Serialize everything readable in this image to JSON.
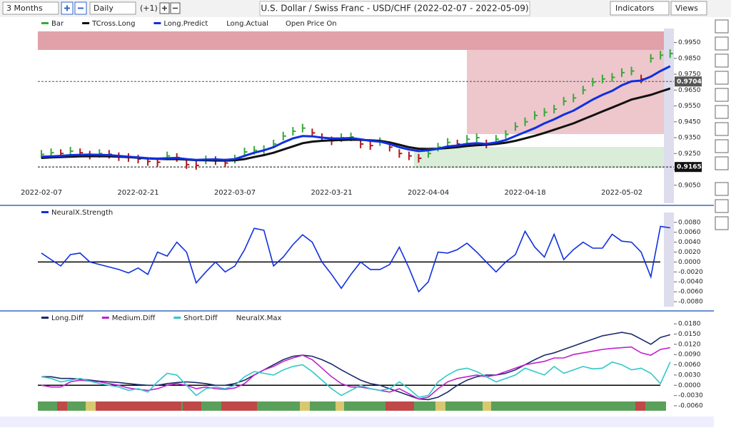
{
  "toolbar": {
    "period": "3 Months",
    "interval": "Daily",
    "offset": "(+1)",
    "title": "U.S. Dollar / Swiss Franc - USD/CHF (2022-02-07 - 2022-05-09)",
    "indicators": "Indicators",
    "views": "Views"
  },
  "chart_data": [
    {
      "type": "line",
      "categories": [
        "2022-02-07",
        null,
        null,
        null,
        null,
        null,
        null,
        null,
        null,
        null,
        "2022-02-21",
        null,
        null,
        null,
        null,
        null,
        null,
        null,
        null,
        null,
        "2022-03-07",
        null,
        null,
        null,
        null,
        null,
        null,
        null,
        null,
        null,
        "2022-03-21",
        null,
        null,
        null,
        null,
        null,
        null,
        null,
        null,
        null,
        "2022-04-04",
        null,
        null,
        null,
        null,
        null,
        null,
        null,
        null,
        null,
        "2022-04-18",
        null,
        null,
        null,
        null,
        null,
        null,
        null,
        null,
        null,
        "2022-05-02",
        null,
        null,
        null,
        null,
        null
      ],
      "series": [
        {
          "name": "Bar",
          "color": "#3aa63a",
          "down_color": "#b01818",
          "style": "bar",
          "values": [
            0.9245,
            0.9255,
            0.925,
            0.9265,
            0.9255,
            0.924,
            0.925,
            0.9245,
            0.923,
            0.9225,
            0.9215,
            0.92,
            0.9195,
            0.9235,
            0.9225,
            0.918,
            0.9175,
            0.921,
            0.9205,
            0.919,
            0.9215,
            0.926,
            0.927,
            0.9275,
            0.931,
            0.936,
            0.939,
            0.941,
            0.938,
            0.935,
            0.933,
            0.935,
            0.9355,
            0.931,
            0.93,
            0.9325,
            0.929,
            0.925,
            0.9235,
            0.922,
            0.925,
            0.929,
            0.932,
            0.931,
            0.934,
            0.935,
            0.931,
            0.934,
            0.937,
            0.942,
            0.945,
            0.949,
            0.951,
            0.953,
            0.958,
            0.96,
            0.965,
            0.97,
            0.972,
            0.973,
            0.976,
            0.977,
            0.972,
            0.985,
            0.987,
            0.988
          ]
        },
        {
          "name": "TCross.Long",
          "color": "#111111",
          "style": "line",
          "values": [
            0.9222,
            0.9225,
            0.9228,
            0.923,
            0.9232,
            0.9233,
            0.9233,
            0.9232,
            0.923,
            0.9227,
            0.9223,
            0.9219,
            0.9216,
            0.9215,
            0.9215,
            0.9212,
            0.9208,
            0.9207,
            0.9206,
            0.9205,
            0.9207,
            0.9215,
            0.9228,
            0.924,
            0.9255,
            0.9275,
            0.9295,
            0.9315,
            0.9325,
            0.933,
            0.9333,
            0.9335,
            0.9337,
            0.9336,
            0.9333,
            0.933,
            0.932,
            0.9305,
            0.929,
            0.928,
            0.9278,
            0.928,
            0.9285,
            0.929,
            0.9297,
            0.9302,
            0.9305,
            0.931,
            0.9318,
            0.933,
            0.9345,
            0.9362,
            0.938,
            0.94,
            0.942,
            0.944,
            0.9465,
            0.949,
            0.9515,
            0.954,
            0.9565,
            0.959,
            0.9605,
            0.962,
            0.964,
            0.966
          ]
        },
        {
          "name": "Long.Predict",
          "color": "#1030e0",
          "style": "line",
          "values": [
            0.923,
            0.9232,
            0.9235,
            0.924,
            0.9242,
            0.9243,
            0.9242,
            0.924,
            0.9235,
            0.923,
            0.9225,
            0.922,
            0.9218,
            0.922,
            0.9222,
            0.9215,
            0.921,
            0.9212,
            0.9213,
            0.921,
            0.9215,
            0.9235,
            0.9255,
            0.927,
            0.929,
            0.932,
            0.9345,
            0.936,
            0.9358,
            0.935,
            0.9345,
            0.9345,
            0.9348,
            0.934,
            0.933,
            0.9325,
            0.931,
            0.929,
            0.9275,
            0.9265,
            0.927,
            0.928,
            0.9295,
            0.93,
            0.931,
            0.9315,
            0.931,
            0.932,
            0.9335,
            0.936,
            0.9385,
            0.941,
            0.944,
            0.9465,
            0.9495,
            0.952,
            0.9555,
            0.959,
            0.962,
            0.9645,
            0.968,
            0.9705,
            0.971,
            0.9735,
            0.977,
            0.98
          ]
        }
      ],
      "other_legend_entries": [
        "Long.Actual",
        "Open Price On"
      ],
      "price_labels": [
        {
          "value": 0.9704,
          "label": "0.9704",
          "color": "#555555"
        },
        {
          "value": 0.9165,
          "label": "0.9165",
          "color": "#111111"
        }
      ],
      "ylim": [
        0.895,
        1.002
      ],
      "yticks": [
        {
          "value": 0.995,
          "label": "0.9950"
        },
        {
          "value": 0.985,
          "label": "0.9850"
        },
        {
          "value": 0.975,
          "label": "0.9750"
        },
        {
          "value": 0.965,
          "label": "0.9650"
        },
        {
          "value": 0.955,
          "label": "0.9550"
        },
        {
          "value": 0.945,
          "label": "0.9450"
        },
        {
          "value": 0.935,
          "label": "0.9350"
        },
        {
          "value": 0.925,
          "label": "0.9250"
        },
        {
          "value": 0.915,
          "label": "0.9150"
        },
        {
          "value": 0.905,
          "label": "0.9050"
        }
      ]
    },
    {
      "type": "line",
      "series": [
        {
          "name": "NeuralX.Strength",
          "color": "#1030e0",
          "style": "line",
          "values": [
            0.0018,
            0.0005,
            -0.0008,
            0.0015,
            0.0018,
            0.0,
            -0.0005,
            -0.001,
            -0.0015,
            -0.0022,
            -0.0012,
            -0.0025,
            0.002,
            0.0012,
            0.004,
            0.002,
            -0.0042,
            -0.002,
            0.0,
            -0.002,
            -0.0008,
            0.0025,
            0.0068,
            0.0064,
            -0.0008,
            0.001,
            0.0035,
            0.0055,
            0.004,
            0.0,
            -0.0025,
            -0.0053,
            -0.0025,
            0.0,
            -0.0015,
            -0.0015,
            -0.0005,
            0.003,
            -0.0012,
            -0.006,
            -0.004,
            0.002,
            0.0018,
            0.0025,
            0.0038,
            0.002,
            0.0,
            -0.002,
            0.0,
            0.0015,
            0.0062,
            0.003,
            0.001,
            0.0056,
            0.0005,
            0.0025,
            0.004,
            0.0028,
            0.0028,
            0.0056,
            0.0042,
            0.004,
            0.002,
            -0.003,
            0.0072,
            0.0069
          ]
        }
      ],
      "ylim": [
        -0.009,
        0.0097
      ],
      "yticks": [
        {
          "value": 0.008,
          "label": "0.0080"
        },
        {
          "value": 0.006,
          "label": "0.0060"
        },
        {
          "value": 0.004,
          "label": "0.0040"
        },
        {
          "value": 0.002,
          "label": "0.0020"
        },
        {
          "value": 0,
          "label": "0.0000"
        },
        {
          "value": -0.002,
          "label": "-0.0020"
        },
        {
          "value": -0.004,
          "label": "-0.0040"
        },
        {
          "value": -0.006,
          "label": "-0.0060"
        },
        {
          "value": -0.008,
          "label": "-0.0080"
        }
      ]
    },
    {
      "type": "line",
      "series": [
        {
          "name": "Long.Diff",
          "color": "#1a2a6a",
          "style": "line",
          "values": [
            0.0025,
            0.0025,
            0.002,
            0.002,
            0.0018,
            0.0015,
            0.0012,
            0.001,
            0.0008,
            0.0005,
            0.0002,
            0.0,
            0.0,
            0.0005,
            0.0008,
            0.001,
            0.0008,
            0.0005,
            0.0,
            0.0,
            0.0005,
            0.0015,
            0.003,
            0.0045,
            0.006,
            0.0075,
            0.0085,
            0.0088,
            0.0085,
            0.0075,
            0.0062,
            0.0045,
            0.003,
            0.0015,
            0.0005,
            0.0,
            -0.001,
            -0.002,
            -0.003,
            -0.004,
            -0.0042,
            -0.0035,
            -0.002,
            0.0,
            0.0015,
            0.0025,
            0.003,
            0.003,
            0.0035,
            0.0045,
            0.006,
            0.0075,
            0.0088,
            0.0095,
            0.0105,
            0.0115,
            0.0125,
            0.0135,
            0.0145,
            0.015,
            0.0155,
            0.015,
            0.0135,
            0.012,
            0.014,
            0.0148
          ]
        },
        {
          "name": "Medium.Diff",
          "color": "#c020d0",
          "style": "line",
          "values": [
            0.0,
            -0.0005,
            -0.0005,
            0.001,
            0.0015,
            0.0012,
            0.001,
            0.0005,
            0.0,
            -0.0008,
            -0.0012,
            -0.0015,
            -0.001,
            0.0,
            0.0005,
            0.0,
            -0.001,
            -0.0005,
            -0.001,
            -0.0012,
            -0.0008,
            0.0005,
            0.003,
            0.0045,
            0.0055,
            0.007,
            0.008,
            0.0088,
            0.0075,
            0.005,
            0.0025,
            0.0005,
            -0.0005,
            -0.0005,
            -0.001,
            -0.0015,
            -0.002,
            -0.001,
            -0.0025,
            -0.004,
            -0.0035,
            -0.001,
            0.001,
            0.002,
            0.0025,
            0.003,
            0.0025,
            0.003,
            0.004,
            0.005,
            0.006,
            0.0065,
            0.007,
            0.008,
            0.008,
            0.009,
            0.0095,
            0.01,
            0.0105,
            0.0108,
            0.011,
            0.0112,
            0.0095,
            0.0088,
            0.0105,
            0.011
          ]
        },
        {
          "name": "Short.Diff",
          "color": "#30c8c8",
          "style": "line",
          "values": [
            0.0025,
            0.002,
            0.001,
            0.0015,
            0.002,
            0.0012,
            0.0005,
            0.0,
            -0.0005,
            -0.0015,
            -0.001,
            -0.002,
            0.001,
            0.0035,
            0.003,
            0.0,
            -0.003,
            -0.001,
            -0.0005,
            -0.001,
            0.0,
            0.0025,
            0.004,
            0.0035,
            0.003,
            0.0045,
            0.0055,
            0.006,
            0.004,
            0.0015,
            -0.001,
            -0.003,
            -0.0015,
            0.0,
            -0.001,
            -0.0015,
            -0.001,
            0.001,
            -0.001,
            -0.0035,
            -0.003,
            0.001,
            0.003,
            0.0045,
            0.005,
            0.004,
            0.0025,
            0.001,
            0.002,
            0.003,
            0.005,
            0.004,
            0.003,
            0.0055,
            0.0035,
            0.0045,
            0.0055,
            0.0048,
            0.005,
            0.0068,
            0.006,
            0.0045,
            0.005,
            0.0035,
            0.0005,
            0.0068
          ]
        }
      ],
      "other_legend_entries": [
        "NeuralX.Max"
      ],
      "ylim": [
        -0.0083,
        0.0199
      ],
      "yticks": [
        {
          "value": 0.018,
          "label": "0.0180"
        },
        {
          "value": 0.015,
          "label": "0.0150"
        },
        {
          "value": 0.012,
          "label": "0.0120"
        },
        {
          "value": 0.009,
          "label": "0.0090"
        },
        {
          "value": 0.006,
          "label": "0.0060"
        },
        {
          "value": 0.003,
          "label": "0.0030"
        },
        {
          "value": 0,
          "label": "0.0000"
        },
        {
          "value": -0.003,
          "label": "-0.0030"
        },
        {
          "value": -0.006,
          "label": "-0.0060"
        }
      ]
    }
  ]
}
